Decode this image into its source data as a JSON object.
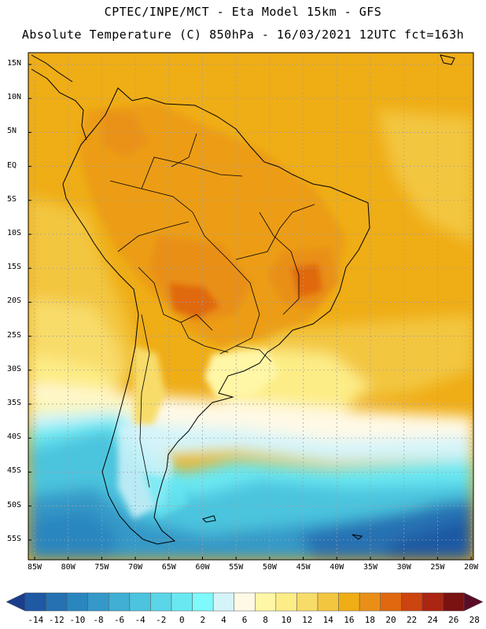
{
  "header": {
    "line1": "CPTEC/INPE/MCT -  Eta Model 15km - GFS",
    "line2": "Absolute Temperature (C) 850hPa - 16/03/2021 12UTC fct=163h"
  },
  "map": {
    "lat_labels": [
      "15N",
      "10N",
      "5N",
      "EQ",
      "5S",
      "10S",
      "15S",
      "20S",
      "25S",
      "30S",
      "35S",
      "40S",
      "45S",
      "50S",
      "55S"
    ],
    "lon_labels": [
      "85W",
      "80W",
      "75W",
      "70W",
      "65W",
      "60W",
      "55W",
      "50W",
      "45W",
      "40W",
      "35W",
      "30W",
      "25W",
      "20W"
    ]
  },
  "colorbar": {
    "ticks": [
      "-14",
      "-12",
      "-10",
      "-8",
      "-6",
      "-4",
      "-2",
      "0",
      "2",
      "4",
      "6",
      "8",
      "10",
      "12",
      "14",
      "16",
      "18",
      "20",
      "22",
      "24",
      "26",
      "28"
    ],
    "colors": [
      "#1a3d8c",
      "#1f58a3",
      "#2571b2",
      "#2a86bf",
      "#3499c8",
      "#40afd4",
      "#4cc4de",
      "#5ad6e8",
      "#6ae8f2",
      "#7efafc",
      "#d4f4fa",
      "#fff9e6",
      "#fff6a6",
      "#fded87",
      "#f8dc6a",
      "#f3c63f",
      "#efad16",
      "#e98f18",
      "#e0680f",
      "#cc4410",
      "#aa2512",
      "#7a1212",
      "#5a0c26"
    ]
  },
  "colors": {
    "land_outline": "#000000",
    "grid": "#a0a0a0"
  }
}
